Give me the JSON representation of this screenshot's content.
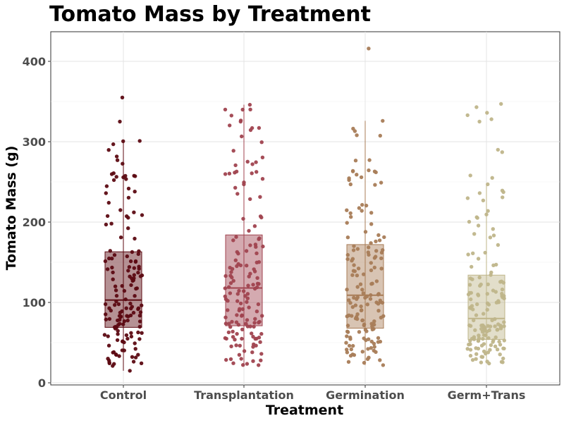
{
  "chart_data": {
    "type": "boxplot",
    "title": "Tomato Mass by Treatment",
    "xlabel": "Treatment",
    "ylabel": "Tomato Mass (g)",
    "ylim": [
      0,
      430
    ],
    "yticks": [
      0,
      100,
      200,
      300,
      400
    ],
    "grid": true,
    "legend": "none",
    "categories": [
      "Control",
      "Transplantation",
      "Germination",
      "Germ+Trans"
    ],
    "colors": [
      "#5c0a12",
      "#a0434f",
      "#a87c57",
      "#bfb58a"
    ],
    "boxes": [
      {
        "category": "Control",
        "min": 15,
        "q1": 69,
        "median": 103,
        "q3": 163,
        "max": 301,
        "outliers": [
          325,
          355
        ]
      },
      {
        "category": "Transplantation",
        "min": 22,
        "q1": 71,
        "median": 118,
        "q3": 184,
        "max": 346,
        "outliers": []
      },
      {
        "category": "Germination",
        "min": 22,
        "q1": 68,
        "median": 109,
        "q3": 172,
        "max": 326,
        "outliers": [
          416
        ]
      },
      {
        "category": "Germ+Trans",
        "min": 24,
        "q1": 54,
        "median": 80,
        "q3": 134,
        "max": 247,
        "outliers": [
          255,
          258,
          287,
          290,
          325,
          328,
          333,
          336,
          343,
          347
        ]
      }
    ],
    "points_per_group": 150
  }
}
